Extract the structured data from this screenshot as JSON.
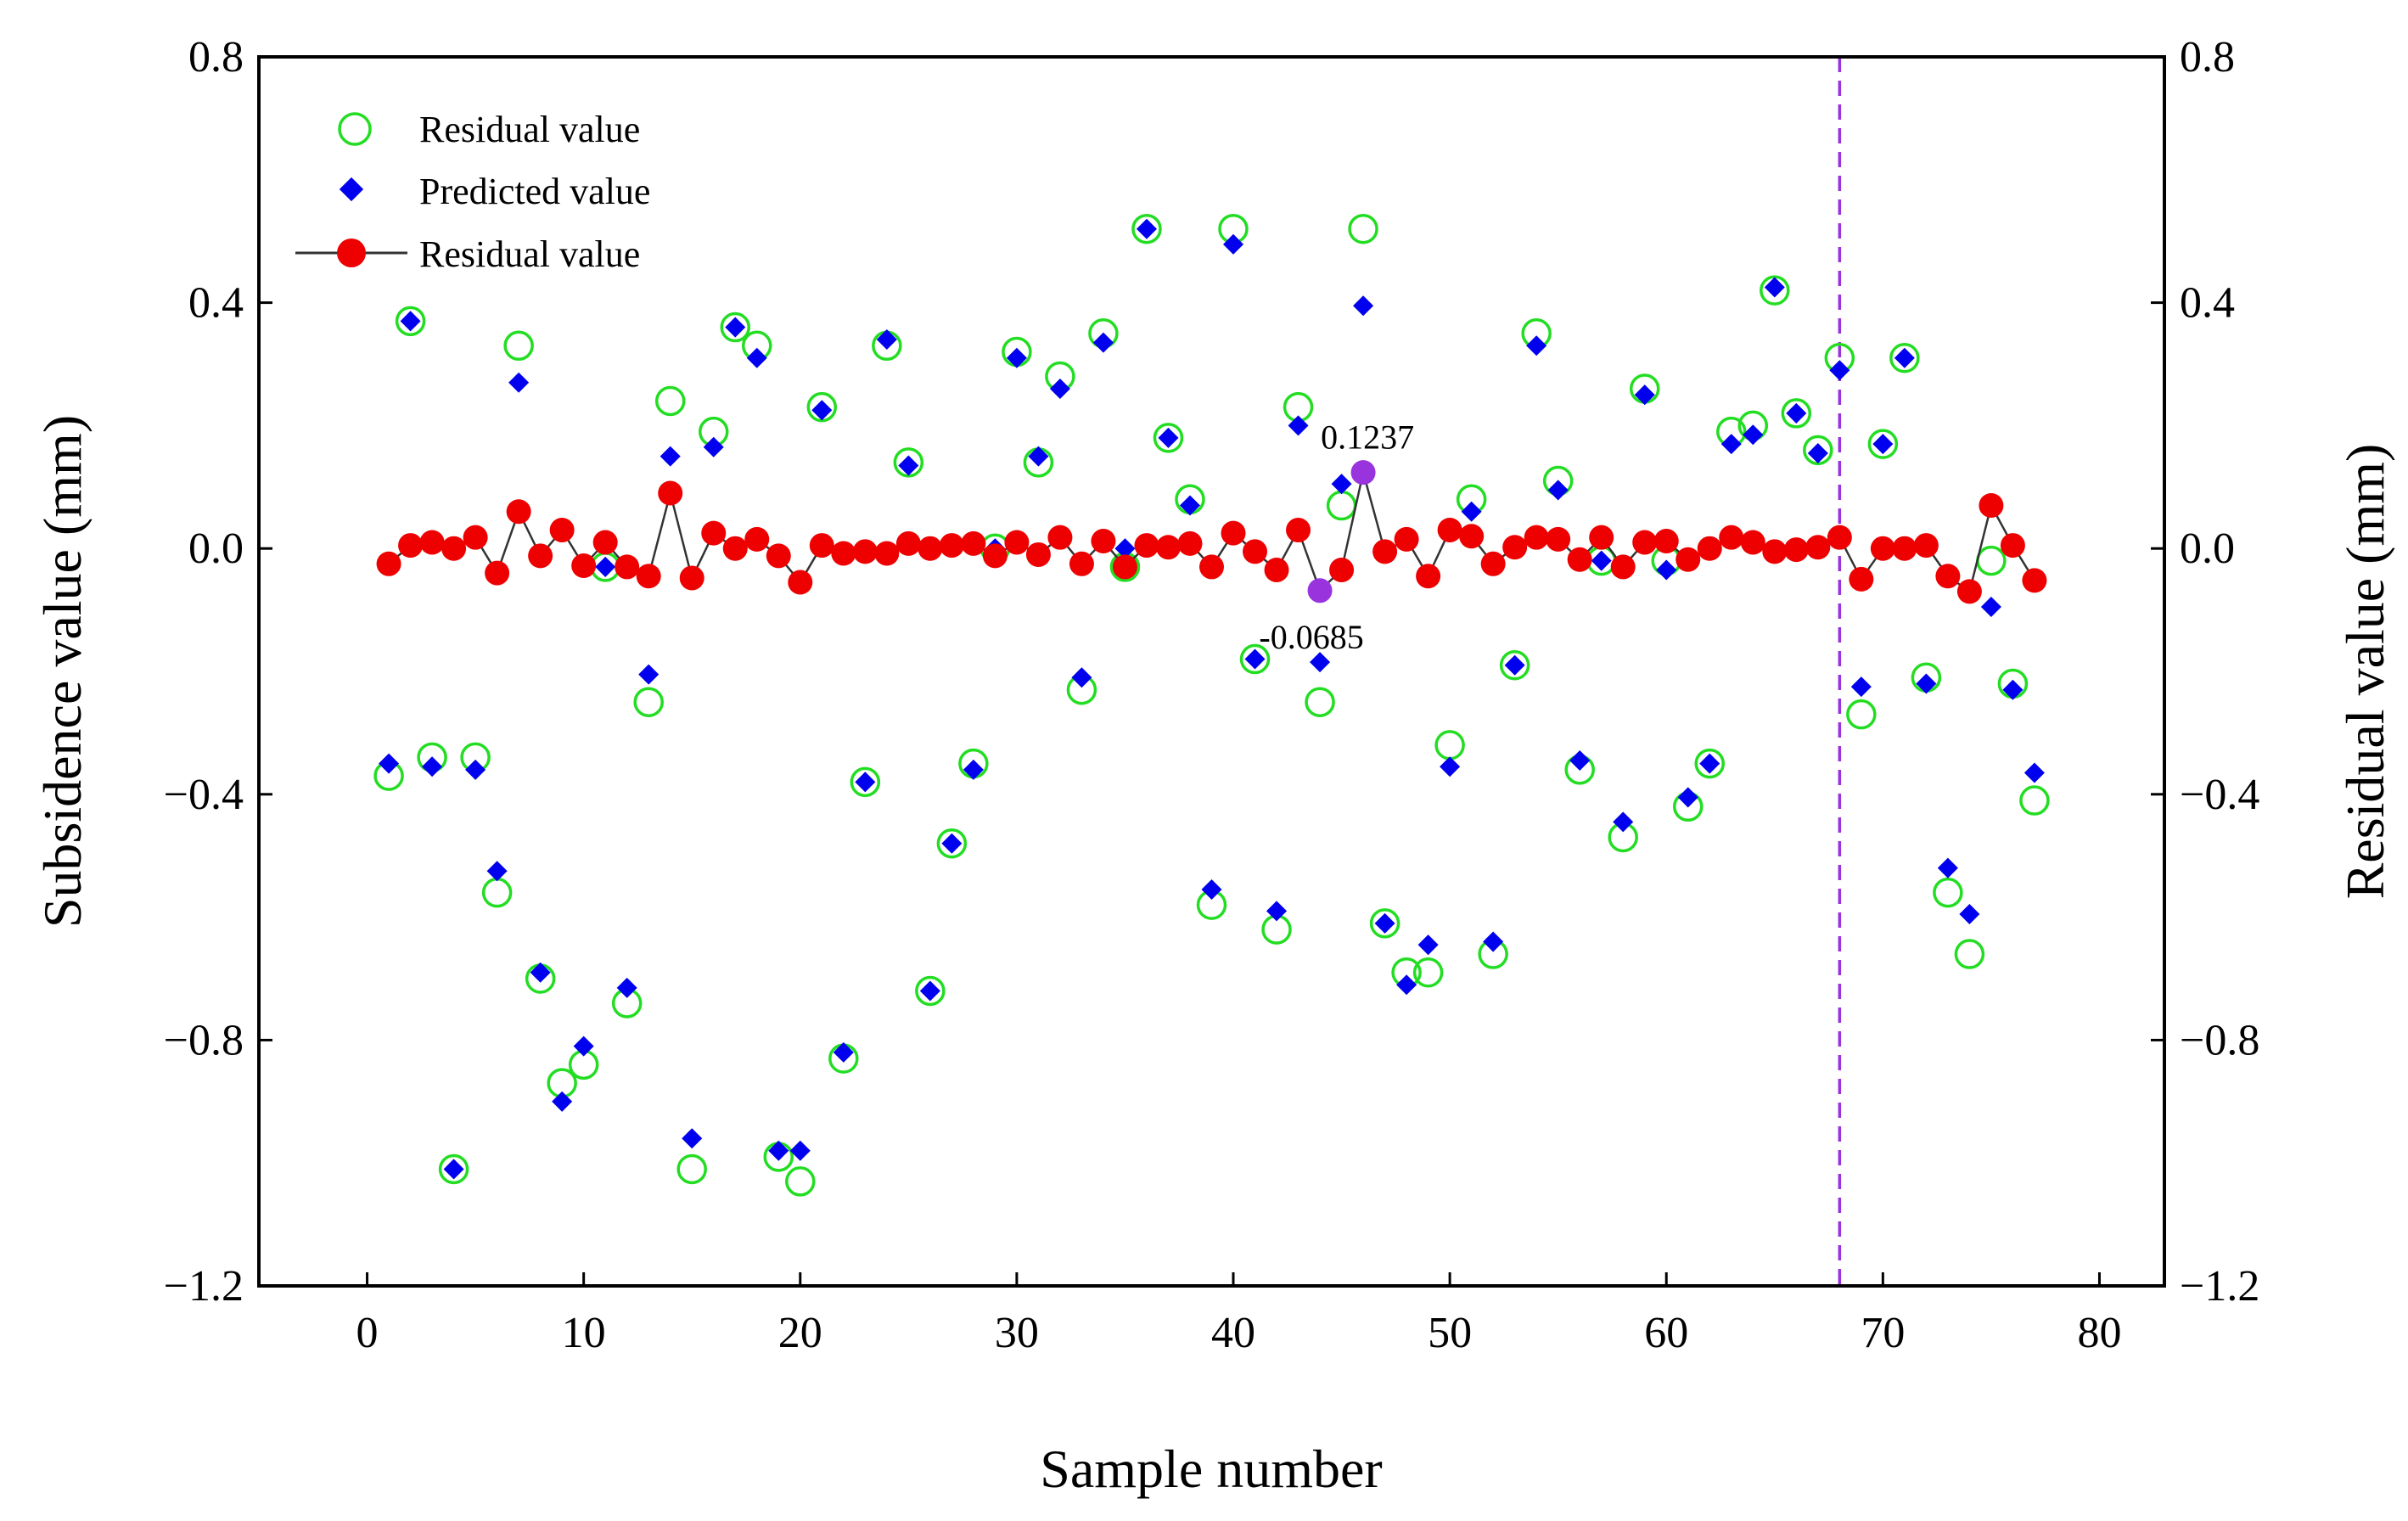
{
  "chart_data": {
    "type": "scatter",
    "title": "",
    "xlabel": "Sample number",
    "ylabel": "Subsidence value (mm)",
    "ylabel_right": "Residual value (mm)",
    "xlim": [
      -5,
      83
    ],
    "ylim": [
      -1.2,
      0.8
    ],
    "ylim_right": [
      -1.2,
      0.8
    ],
    "x_ticks": [
      0,
      10,
      20,
      30,
      40,
      50,
      60,
      70,
      80
    ],
    "y_ticks": [
      0.8,
      0.4,
      0.0,
      -0.4,
      -0.8,
      -1.2
    ],
    "x_tick_labels": [
      "0",
      "10",
      "20",
      "30",
      "40",
      "50",
      "60",
      "70",
      "80"
    ],
    "y_tick_labels": [
      "0.8",
      "0.4",
      "0.0",
      "−0.4",
      "−0.8",
      "−1.2"
    ],
    "grid": false,
    "legend_position": "top-left",
    "divider_x": 68,
    "series": [
      {
        "name": "Residual value",
        "marker": "open-circle",
        "color": "#22dd22",
        "x": [
          1,
          2,
          3,
          4,
          5,
          6,
          7,
          8,
          9,
          10,
          11,
          12,
          13,
          14,
          15,
          16,
          17,
          18,
          19,
          20,
          21,
          22,
          23,
          24,
          25,
          26,
          27,
          28,
          29,
          30,
          31,
          32,
          33,
          34,
          35,
          36,
          37,
          38,
          39,
          40,
          41,
          42,
          43,
          44,
          45,
          46,
          47,
          48,
          49,
          50,
          51,
          52,
          53,
          54,
          55,
          56,
          57,
          58,
          59,
          60,
          61,
          62,
          63,
          64,
          65,
          66,
          67,
          68,
          69,
          70,
          71,
          72,
          73,
          74,
          75,
          76,
          77
        ],
        "values": [
          -0.37,
          0.37,
          -0.34,
          -1.01,
          -0.34,
          -0.56,
          0.33,
          -0.7,
          -0.87,
          -0.84,
          -0.03,
          -0.74,
          -0.25,
          0.24,
          -1.01,
          0.19,
          0.36,
          0.33,
          -0.99,
          -1.03,
          0.23,
          -0.83,
          -0.38,
          0.33,
          0.14,
          -0.72,
          -0.48,
          -0.35,
          0.0,
          0.32,
          0.14,
          0.28,
          -0.23,
          0.35,
          -0.03,
          0.52,
          0.18,
          0.08,
          -0.58,
          0.52,
          -0.18,
          -0.62,
          0.23,
          -0.25,
          0.07,
          0.52,
          -0.61,
          -0.69,
          -0.69,
          -0.32,
          0.08,
          -0.66,
          -0.19,
          0.35,
          0.11,
          -0.36,
          -0.02,
          -0.47,
          0.26,
          -0.02,
          -0.42,
          -0.35,
          0.19,
          0.2,
          0.42,
          0.22,
          0.16,
          0.31,
          -0.27,
          0.17,
          0.31,
          -0.21,
          -0.56,
          -0.66,
          -0.02,
          -0.22,
          -0.41
        ]
      },
      {
        "name": "Predicted value",
        "marker": "diamond",
        "color": "#0000ee",
        "x": [
          1,
          2,
          3,
          4,
          5,
          6,
          7,
          8,
          9,
          10,
          11,
          12,
          13,
          14,
          15,
          16,
          17,
          18,
          19,
          20,
          21,
          22,
          23,
          24,
          25,
          26,
          27,
          28,
          29,
          30,
          31,
          32,
          33,
          34,
          35,
          36,
          37,
          38,
          39,
          40,
          41,
          42,
          43,
          44,
          45,
          46,
          47,
          48,
          49,
          50,
          51,
          52,
          53,
          54,
          55,
          56,
          57,
          58,
          59,
          60,
          61,
          62,
          63,
          64,
          65,
          66,
          67,
          68,
          69,
          70,
          71,
          72,
          73,
          74,
          75,
          76,
          77
        ],
        "values": [
          -0.35,
          0.37,
          -0.355,
          -1.01,
          -0.36,
          -0.525,
          0.27,
          -0.69,
          -0.9,
          -0.81,
          -0.03,
          -0.715,
          -0.205,
          0.15,
          -0.96,
          0.165,
          0.36,
          0.31,
          -0.98,
          -0.98,
          0.225,
          -0.82,
          -0.38,
          0.34,
          0.135,
          -0.72,
          -0.48,
          -0.36,
          0.0,
          0.31,
          0.15,
          0.26,
          -0.21,
          0.335,
          0.0,
          0.52,
          0.18,
          0.07,
          -0.555,
          0.495,
          -0.18,
          -0.59,
          0.2,
          -0.185,
          0.105,
          0.395,
          -0.61,
          -0.71,
          -0.645,
          -0.355,
          0.06,
          -0.64,
          -0.19,
          0.33,
          0.095,
          -0.345,
          -0.02,
          -0.445,
          0.25,
          -0.035,
          -0.405,
          -0.35,
          0.17,
          0.185,
          0.425,
          0.22,
          0.155,
          0.29,
          -0.225,
          0.17,
          0.31,
          -0.22,
          -0.52,
          -0.595,
          -0.095,
          -0.23,
          -0.365
        ]
      },
      {
        "name": "Residual value",
        "marker": "filled-circle-line",
        "color": "#ee0000",
        "line_color": "#333333",
        "axis": "right",
        "x": [
          1,
          2,
          3,
          4,
          5,
          6,
          7,
          8,
          9,
          10,
          11,
          12,
          13,
          14,
          15,
          16,
          17,
          18,
          19,
          20,
          21,
          22,
          23,
          24,
          25,
          26,
          27,
          28,
          29,
          30,
          31,
          32,
          33,
          34,
          35,
          36,
          37,
          38,
          39,
          40,
          41,
          42,
          43,
          44,
          45,
          46,
          47,
          48,
          49,
          50,
          51,
          52,
          53,
          54,
          55,
          56,
          57,
          58,
          59,
          60,
          61,
          62,
          63,
          64,
          65,
          66,
          67,
          68,
          69,
          70,
          71,
          72,
          73,
          74,
          75,
          76,
          77
        ],
        "values": [
          -0.025,
          0.005,
          0.01,
          0.0,
          0.018,
          -0.04,
          0.06,
          -0.012,
          0.03,
          -0.028,
          0.01,
          -0.03,
          -0.045,
          0.09,
          -0.048,
          0.025,
          0.0,
          0.015,
          -0.012,
          -0.055,
          0.005,
          -0.008,
          -0.005,
          -0.008,
          0.008,
          0.0,
          0.005,
          0.008,
          -0.012,
          0.01,
          -0.01,
          0.018,
          -0.025,
          0.012,
          -0.03,
          0.005,
          0.002,
          0.008,
          -0.03,
          0.025,
          -0.005,
          -0.035,
          0.03,
          -0.0685,
          -0.035,
          0.1237,
          -0.005,
          0.015,
          -0.045,
          0.03,
          0.02,
          -0.025,
          0.002,
          0.018,
          0.015,
          -0.018,
          0.018,
          -0.03,
          0.01,
          0.012,
          -0.018,
          0.0,
          0.018,
          0.01,
          -0.005,
          -0.002,
          0.002,
          0.018,
          -0.05,
          0.0,
          0.0,
          0.005,
          -0.045,
          -0.07,
          0.07,
          0.005,
          -0.052
        ]
      }
    ],
    "annotations": [
      {
        "label": "0.1237",
        "x": 46,
        "y": 0.1237
      },
      {
        "label": "-0.0685",
        "x": 44,
        "y": -0.0685
      }
    ],
    "highlight_color": "#9933dd",
    "divider_color": "#9933dd"
  }
}
